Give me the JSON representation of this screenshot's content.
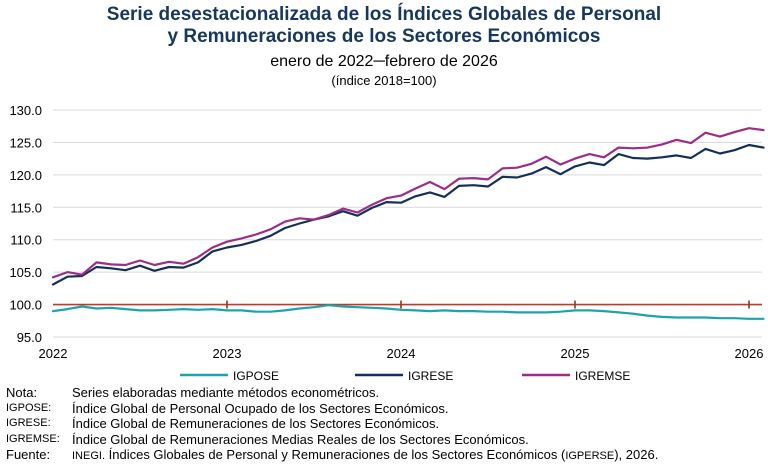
{
  "chart_data": {
    "type": "line",
    "title": "Serie desestacionalizada de los Índices Globales de Personal",
    "title_line2": "y Remuneraciones de los Sectores Económicos",
    "subtitle": "enero de 2022─febrero de 2026",
    "subtitle2": "(índice 2018=100)",
    "ylim": [
      95,
      130
    ],
    "yticks": [
      "95.0",
      "100.0",
      "105.0",
      "110.0",
      "115.0",
      "120.0",
      "125.0",
      "130.0"
    ],
    "xticks": [
      "2022",
      "2023",
      "2024",
      "2025",
      "2026"
    ],
    "reference_line": 100,
    "legend_position": "bottom",
    "grid": "horizontal",
    "x_start": "2022-01",
    "series": [
      {
        "name": "IGPOSE",
        "color": "#1fa3a8",
        "values": [
          99.0,
          99.3,
          99.7,
          99.4,
          99.5,
          99.3,
          99.1,
          99.1,
          99.2,
          99.3,
          99.2,
          99.3,
          99.1,
          99.1,
          98.9,
          98.9,
          99.1,
          99.4,
          99.6,
          99.9,
          99.7,
          99.6,
          99.5,
          99.4,
          99.2,
          99.1,
          99.0,
          99.1,
          99.0,
          99.0,
          98.9,
          98.9,
          98.8,
          98.8,
          98.8,
          98.9,
          99.1,
          99.1,
          99.0,
          98.8,
          98.6,
          98.3,
          98.1,
          98.0,
          98.0,
          98.0,
          97.9,
          97.9,
          97.8,
          97.8
        ]
      },
      {
        "name": "IGRESE",
        "color": "#14305a",
        "values": [
          103.1,
          104.3,
          104.4,
          105.8,
          105.6,
          105.3,
          106.0,
          105.2,
          105.8,
          105.7,
          106.5,
          108.2,
          108.8,
          109.2,
          109.8,
          110.6,
          111.8,
          112.5,
          113.1,
          113.6,
          114.4,
          113.7,
          114.9,
          115.8,
          115.7,
          116.7,
          117.3,
          116.6,
          118.3,
          118.4,
          118.2,
          119.7,
          119.6,
          120.2,
          121.2,
          120.1,
          121.3,
          121.9,
          121.5,
          123.2,
          122.6,
          122.5,
          122.7,
          123.0,
          122.6,
          124.0,
          123.3,
          123.8,
          124.6,
          124.2
        ]
      },
      {
        "name": "IGREMSE",
        "color": "#9e2d86",
        "values": [
          104.2,
          105.0,
          104.6,
          106.5,
          106.2,
          106.1,
          106.8,
          106.1,
          106.6,
          106.3,
          107.3,
          108.8,
          109.7,
          110.2,
          110.8,
          111.6,
          112.8,
          113.3,
          113.1,
          113.8,
          114.8,
          114.2,
          115.4,
          116.4,
          116.8,
          117.9,
          118.9,
          117.8,
          119.4,
          119.5,
          119.3,
          121.0,
          121.1,
          121.7,
          122.8,
          121.6,
          122.5,
          123.2,
          122.7,
          124.2,
          124.1,
          124.2,
          124.7,
          125.4,
          124.9,
          126.5,
          125.9,
          126.6,
          127.2,
          126.9
        ]
      }
    ]
  },
  "notes": [
    {
      "key": "Nota:",
      "text": "Series elaboradas mediante métodos econométricos."
    },
    {
      "key": "IGPOSE:",
      "text": "Índice Global de Personal Ocupado de los Sectores Económicos."
    },
    {
      "key": "IGRESE:",
      "text": "Índice Global de Remuneraciones de los Sectores Económicos."
    },
    {
      "key": "IGREMSE:",
      "text": "Índice Global de Remuneraciones Medias Reales de los Sectores Económicos."
    }
  ],
  "source": {
    "key": "Fuente:",
    "org": "INEGI.",
    "text": " Índices Globales de Personal y Remuneraciones de los Sectores Económicos (",
    "abbr": "IGPERSE",
    "end": "), 2026."
  }
}
